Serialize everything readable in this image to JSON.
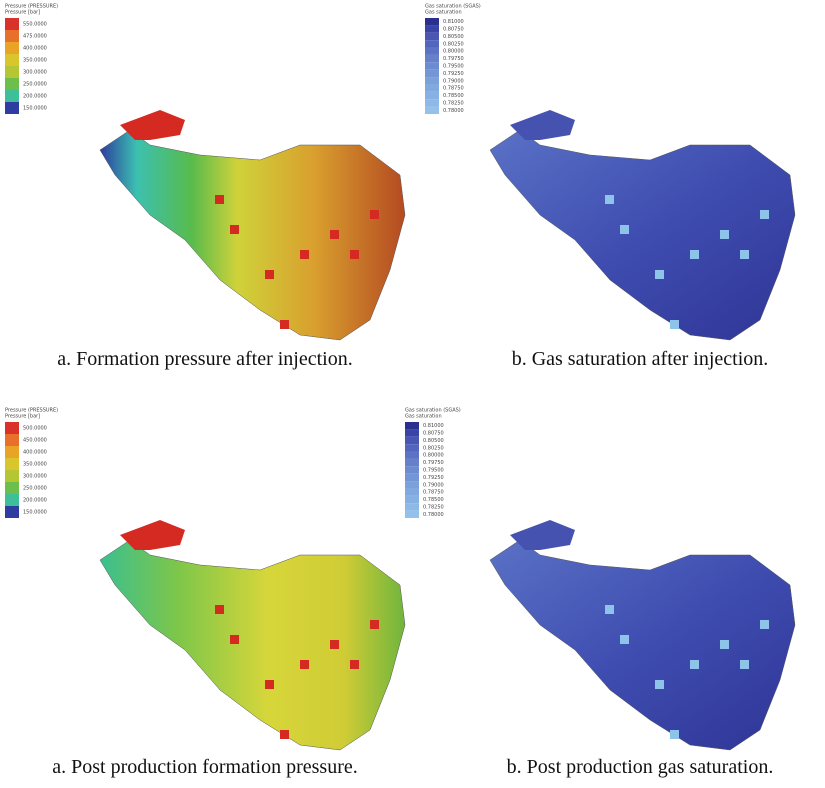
{
  "panels": [
    {
      "legend": {
        "title": "Pressure (PRESSURE)",
        "subtitle": "Pressure [bar]",
        "labels": [
          "550.0000",
          "475.0000",
          "400.0000",
          "350.0000",
          "300.0000",
          "250.0000",
          "200.0000",
          "150.0000"
        ],
        "colors": [
          "#d8322a",
          "#e8702a",
          "#e9a327",
          "#d9c52c",
          "#b5c635",
          "#6cbf4a",
          "#3dbf9a",
          "#2f3da0"
        ]
      },
      "caption": "a. Formation pressure after injection."
    },
    {
      "legend": {
        "title": "Gas saturation (SGAS)",
        "subtitle": "Gas saturation",
        "labels": [
          "0.81000",
          "0.80750",
          "0.80500",
          "0.80250",
          "0.80000",
          "0.79750",
          "0.79500",
          "0.79250",
          "0.79000",
          "0.78750",
          "0.78500",
          "0.78250",
          "0.78000"
        ],
        "colors": [
          "#2b2f8f",
          "#3a44a6",
          "#4856b4",
          "#5465bd",
          "#5d72c4",
          "#6680cb",
          "#6d8bd0",
          "#7596d6",
          "#7ba0da",
          "#80a9df",
          "#86b1e2",
          "#8cb9e6",
          "#93c1ea"
        ]
      },
      "caption": "b. Gas saturation after injection."
    },
    {
      "legend": {
        "title": "Pressure (PRESSURE)",
        "subtitle": "Pressure [bar]",
        "labels": [
          "500.0000",
          "450.0000",
          "400.0000",
          "350.0000",
          "300.0000",
          "250.0000",
          "200.0000",
          "150.0000"
        ],
        "colors": [
          "#d8322a",
          "#e8702a",
          "#e9a327",
          "#d9c52c",
          "#b5c635",
          "#6cbf4a",
          "#3dbf9a",
          "#2f3da0"
        ]
      },
      "caption": "a. Post production formation pressure."
    },
    {
      "legend": {
        "title": "Gas saturation (SGAS)",
        "subtitle": "Gas saturation",
        "labels": [
          "0.81000",
          "0.80750",
          "0.80500",
          "0.80250",
          "0.80000",
          "0.79750",
          "0.79500",
          "0.79250",
          "0.79000",
          "0.78750",
          "0.78500",
          "0.78250",
          "0.78000"
        ],
        "colors": [
          "#2b2f8f",
          "#3a44a6",
          "#4856b4",
          "#5465bd",
          "#5d72c4",
          "#6680cb",
          "#6d8bd0",
          "#7596d6",
          "#7ba0da",
          "#80a9df",
          "#86b1e2",
          "#8cb9e6",
          "#93c1ea"
        ]
      },
      "caption": "b. Post production gas saturation."
    }
  ]
}
